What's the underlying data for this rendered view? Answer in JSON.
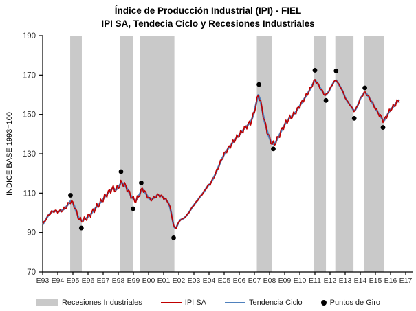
{
  "header": {
    "title": "Índice de Producción Industrial (IPI) - FIEL",
    "subtitle": "IPI SA, Tendecia Ciclo y Recesiones Industriales"
  },
  "legend": {
    "items": [
      {
        "label": "Recesiones Industriales",
        "marker": "gray-rect-swatch",
        "color": "#c9c9c9"
      },
      {
        "label": "IPI SA",
        "marker": "red-line-swatch",
        "color": "#c00000"
      },
      {
        "label": "Tendencia Ciclo",
        "marker": "blue-line-swatch",
        "color": "#4f81bd"
      },
      {
        "label": "Puntos de Giro",
        "marker": "black-dot-swatch",
        "color": "#000000"
      }
    ]
  },
  "chart_data": {
    "type": "line",
    "title": "Índice de Producción Industrial (IPI) - FIEL",
    "subtitle": "IPI SA, Tendecia Ciclo y Recesiones Industriales",
    "xlabel": "",
    "ylabel": "INDICE BASE 1993=100",
    "ylim": [
      70,
      190
    ],
    "y_ticks": [
      70,
      90,
      110,
      130,
      150,
      170,
      190
    ],
    "xlim_years": [
      1993.0,
      2017.5
    ],
    "x_tick_labels": [
      "E93",
      "E94",
      "E95",
      "E96",
      "E97",
      "E98",
      "E99",
      "E00",
      "E01",
      "E02",
      "E03",
      "E04",
      "E05",
      "E06",
      "E07",
      "E08",
      "E09",
      "E10",
      "E11",
      "E12",
      "E13",
      "E14",
      "E15",
      "E16",
      "E17"
    ],
    "x_tick_years": [
      1993,
      1994,
      1995,
      1996,
      1997,
      1998,
      1999,
      2000,
      2001,
      2002,
      2003,
      2004,
      2005,
      2006,
      2007,
      2008,
      2009,
      2010,
      2011,
      2012,
      2013,
      2014,
      2015,
      2016,
      2017
    ],
    "grid": false,
    "legend_position": "bottom",
    "axis_color": "#000000",
    "tick_label_color": "#303030",
    "recessions": {
      "name": "Recesiones Industriales",
      "color": "#c9c9c9",
      "ranges_years": [
        [
          1994.82,
          1995.59
        ],
        [
          1998.1,
          1999.0
        ],
        [
          1999.45,
          2001.71
        ],
        [
          2007.16,
          2008.16
        ],
        [
          2010.91,
          2011.73
        ],
        [
          2012.35,
          2013.55
        ],
        [
          2014.27,
          2015.57
        ]
      ]
    },
    "series": [
      {
        "name": "Tendencia Ciclo",
        "color": "#4f81bd",
        "stroke_width": 2.7,
        "points": [
          [
            1993.0,
            94
          ],
          [
            1993.2,
            96.5
          ],
          [
            1993.4,
            99
          ],
          [
            1993.6,
            100.5
          ],
          [
            1993.8,
            101
          ],
          [
            1994.0,
            100.5
          ],
          [
            1994.2,
            101
          ],
          [
            1994.45,
            102
          ],
          [
            1994.65,
            104
          ],
          [
            1994.85,
            106
          ],
          [
            1995.05,
            104.5
          ],
          [
            1995.2,
            101
          ],
          [
            1995.4,
            97
          ],
          [
            1995.55,
            96
          ],
          [
            1995.75,
            96.5
          ],
          [
            1996.0,
            98
          ],
          [
            1996.25,
            100
          ],
          [
            1996.5,
            102.5
          ],
          [
            1996.75,
            104.5
          ],
          [
            1997.0,
            107
          ],
          [
            1997.25,
            109.5
          ],
          [
            1997.5,
            111.5
          ],
          [
            1997.65,
            112.5
          ],
          [
            1997.85,
            111.5
          ],
          [
            1998.05,
            113.5
          ],
          [
            1998.2,
            115.5
          ],
          [
            1998.4,
            114.5
          ],
          [
            1998.6,
            112
          ],
          [
            1998.8,
            109
          ],
          [
            1999.0,
            107
          ],
          [
            1999.15,
            106
          ],
          [
            1999.35,
            108.5
          ],
          [
            1999.6,
            112.5
          ],
          [
            1999.8,
            110
          ],
          [
            2000.1,
            106.5
          ],
          [
            2000.35,
            107.5
          ],
          [
            2000.6,
            109
          ],
          [
            2000.85,
            108.5
          ],
          [
            2001.1,
            107
          ],
          [
            2001.3,
            105.5
          ],
          [
            2001.45,
            102
          ],
          [
            2001.55,
            98
          ],
          [
            2001.67,
            93
          ],
          [
            2001.8,
            92
          ],
          [
            2001.95,
            94.5
          ],
          [
            2002.1,
            96.5
          ],
          [
            2002.3,
            97
          ],
          [
            2002.5,
            98.5
          ],
          [
            2002.7,
            100.5
          ],
          [
            2002.9,
            103
          ],
          [
            2003.15,
            105.5
          ],
          [
            2003.4,
            108
          ],
          [
            2003.65,
            110.5
          ],
          [
            2003.9,
            113.5
          ],
          [
            2004.1,
            115
          ],
          [
            2004.35,
            118.5
          ],
          [
            2004.6,
            123
          ],
          [
            2004.85,
            127.5
          ],
          [
            2005.1,
            131
          ],
          [
            2005.35,
            133.5
          ],
          [
            2005.6,
            136
          ],
          [
            2005.85,
            138.5
          ],
          [
            2006.1,
            140.5
          ],
          [
            2006.35,
            143
          ],
          [
            2006.55,
            144.5
          ],
          [
            2006.75,
            146
          ],
          [
            2006.95,
            150
          ],
          [
            2007.1,
            155
          ],
          [
            2007.27,
            160.5
          ],
          [
            2007.45,
            155
          ],
          [
            2007.65,
            147
          ],
          [
            2007.9,
            140
          ],
          [
            2008.1,
            136
          ],
          [
            2008.3,
            134.5
          ],
          [
            2008.55,
            138
          ],
          [
            2008.8,
            142
          ],
          [
            2009.05,
            145.5
          ],
          [
            2009.3,
            148
          ],
          [
            2009.55,
            149.5
          ],
          [
            2009.8,
            152
          ],
          [
            2010.05,
            155
          ],
          [
            2010.3,
            158
          ],
          [
            2010.55,
            161
          ],
          [
            2010.8,
            164.5
          ],
          [
            2011.0,
            167.5
          ],
          [
            2011.15,
            166
          ],
          [
            2011.35,
            163.5
          ],
          [
            2011.55,
            161
          ],
          [
            2011.7,
            159.5
          ],
          [
            2011.9,
            161.5
          ],
          [
            2012.1,
            164.5
          ],
          [
            2012.25,
            166.5
          ],
          [
            2012.4,
            167.5
          ],
          [
            2012.6,
            165
          ],
          [
            2012.8,
            162.5
          ],
          [
            2013.0,
            158.5
          ],
          [
            2013.2,
            156
          ],
          [
            2013.4,
            154
          ],
          [
            2013.6,
            151.5
          ],
          [
            2013.8,
            154
          ],
          [
            2014.0,
            158
          ],
          [
            2014.3,
            161.5
          ],
          [
            2014.5,
            159.5
          ],
          [
            2014.75,
            156.5
          ],
          [
            2015.0,
            153
          ],
          [
            2015.25,
            150
          ],
          [
            2015.55,
            146.5
          ],
          [
            2015.8,
            150
          ],
          [
            2016.0,
            152.5
          ],
          [
            2016.2,
            154
          ],
          [
            2016.4,
            156
          ],
          [
            2016.6,
            157.5
          ]
        ]
      },
      {
        "name": "IPI SA",
        "color": "#c00000",
        "stroke_width": 1.6,
        "derived_from": "Tendencia Ciclo",
        "noise_amplitude": 1.7
      }
    ],
    "turning_points": {
      "name": "Puntos de Giro",
      "color": "#000000",
      "marker_radius": 3.4,
      "points": [
        [
          1994.84,
          108.9
        ],
        [
          1995.56,
          92.3
        ],
        [
          1998.18,
          120.9
        ],
        [
          1998.98,
          102.1
        ],
        [
          1999.52,
          115.2
        ],
        [
          2001.66,
          87.3
        ],
        [
          2007.3,
          165.2
        ],
        [
          2008.25,
          132.5
        ],
        [
          2011.0,
          172.4
        ],
        [
          2011.73,
          157.1
        ],
        [
          2012.4,
          172.1
        ],
        [
          2013.6,
          148.0
        ],
        [
          2014.3,
          163.5
        ],
        [
          2015.5,
          143.4
        ]
      ]
    }
  }
}
